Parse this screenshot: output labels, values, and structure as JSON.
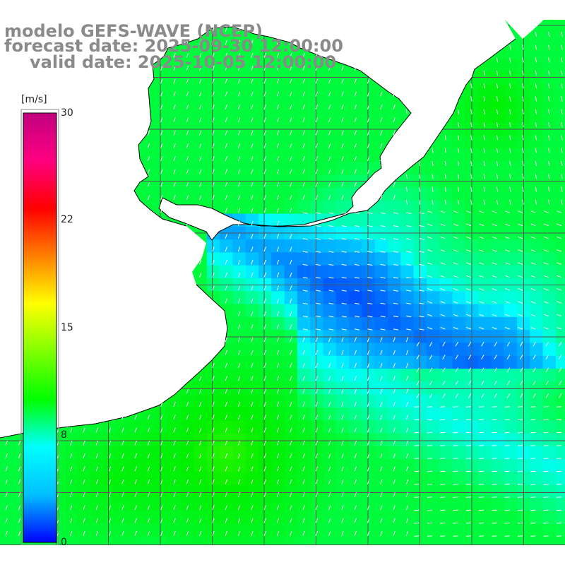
{
  "title": {
    "model": "modelo GEFS-WAVE (NCEP)",
    "forecast": "forecast date: 2025-09-30 12:00:00",
    "valid": "valid date: 2025-10-05 12:00:00"
  },
  "colorbar": {
    "unit": "[m/s]",
    "ticks": [
      "30",
      "22",
      "15",
      "8",
      "0"
    ],
    "tick_values": [
      30,
      22,
      15,
      8,
      0
    ],
    "range": [
      0,
      30
    ],
    "colors": [
      "#0000ff",
      "#00bfff",
      "#00ffff",
      "#00ff00",
      "#7fff00",
      "#ffff00",
      "#ff8000",
      "#ff0000",
      "#ff0080",
      "#c0007f"
    ]
  },
  "map": {
    "type": "wind-speed field with direction arrows",
    "region": "Río de la Plata / southern Brazil coast",
    "grid": true,
    "land_color": "#ffffff",
    "arrow_color": "#ffffff",
    "coastline_color": "#000000",
    "grid_color": "#555555"
  }
}
